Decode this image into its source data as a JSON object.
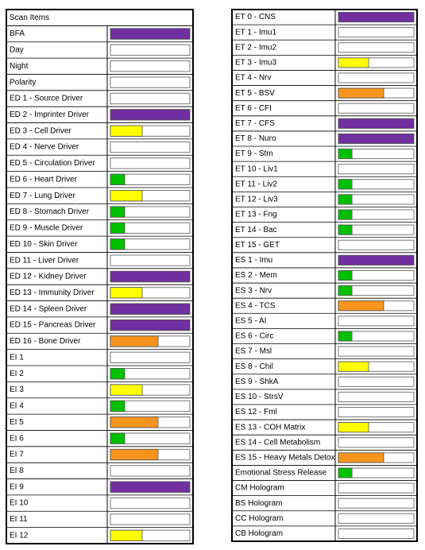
{
  "left": {
    "title": "Scan Items",
    "rows": [
      {
        "label": "BFA",
        "value": 100,
        "color": "#7030a0"
      },
      {
        "label": "Day",
        "value": 0
      },
      {
        "label": "Night",
        "value": 0
      },
      {
        "label": "Polarity",
        "value": 0
      },
      {
        "label": "ED 1 - Source Driver",
        "value": 0
      },
      {
        "label": "ED 2 - Imprinter Driver",
        "value": 100,
        "color": "#7030a0"
      },
      {
        "label": "ED 3 - Cell Driver",
        "value": 40,
        "color": "#ffff00"
      },
      {
        "label": "ED 4 - Nerve Driver",
        "value": 0
      },
      {
        "label": "ED 5 - Circulation Driver",
        "value": 0
      },
      {
        "label": "ED 6 - Heart Driver",
        "value": 18,
        "color": "#00c000"
      },
      {
        "label": "ED 7 - Lung Driver",
        "value": 40,
        "color": "#ffff00"
      },
      {
        "label": "ED 8 - Stomach Driver",
        "value": 18,
        "color": "#00c000"
      },
      {
        "label": "ED 9 - Muscle Driver",
        "value": 18,
        "color": "#00c000"
      },
      {
        "label": "ED 10 - Skin Driver",
        "value": 18,
        "color": "#00c000"
      },
      {
        "label": "ED 11 - Liver Driver",
        "value": 0
      },
      {
        "label": "ED 12 - Kidney Driver",
        "value": 100,
        "color": "#7030a0"
      },
      {
        "label": "ED 13 - Immunity Driver",
        "value": 40,
        "color": "#ffff00"
      },
      {
        "label": "ED 14 - Spleen Driver",
        "value": 100,
        "color": "#7030a0"
      },
      {
        "label": "ED 15 - Pancreas Driver",
        "value": 100,
        "color": "#7030a0"
      },
      {
        "label": "ED 16 - Bone Driver",
        "value": 60,
        "color": "#f7941d"
      },
      {
        "label": "EI 1",
        "value": 0
      },
      {
        "label": "EI 2",
        "value": 18,
        "color": "#00c000"
      },
      {
        "label": "EI 3",
        "value": 40,
        "color": "#ffff00"
      },
      {
        "label": "EI 4",
        "value": 18,
        "color": "#00c000"
      },
      {
        "label": "EI 5",
        "value": 60,
        "color": "#f7941d"
      },
      {
        "label": "EI 6",
        "value": 18,
        "color": "#00c000"
      },
      {
        "label": "EI 7",
        "value": 60,
        "color": "#f7941d"
      },
      {
        "label": "EI 8",
        "value": 0
      },
      {
        "label": "EI 9",
        "value": 100,
        "color": "#7030a0"
      },
      {
        "label": "EI 10",
        "value": 0
      },
      {
        "label": "EI 11",
        "value": 0
      },
      {
        "label": "EI 12",
        "value": 40,
        "color": "#ffff00"
      }
    ]
  },
  "right": {
    "rows": [
      {
        "label": "ET 0 - CNS",
        "value": 100,
        "color": "#7030a0"
      },
      {
        "label": "ET 1 - Imu1",
        "value": 0
      },
      {
        "label": "ET 2 - Imu2",
        "value": 0
      },
      {
        "label": "ET 3 - Imu3",
        "value": 40,
        "color": "#ffff00"
      },
      {
        "label": "ET 4 - Nrv",
        "value": 0
      },
      {
        "label": "ET 5 - BSV",
        "value": 60,
        "color": "#f7941d"
      },
      {
        "label": "ET 6 - CFI",
        "value": 0
      },
      {
        "label": "ET 7 - CFS",
        "value": 100,
        "color": "#7030a0"
      },
      {
        "label": "ET 8 - Nuro",
        "value": 100,
        "color": "#7030a0"
      },
      {
        "label": "ET 9 - Stm",
        "value": 18,
        "color": "#00c000"
      },
      {
        "label": "ET 10 - Liv1",
        "value": 0
      },
      {
        "label": "ET 11 - Liv2",
        "value": 18,
        "color": "#00c000"
      },
      {
        "label": "ET 12 - Liv3",
        "value": 18,
        "color": "#00c000"
      },
      {
        "label": "ET 13 - Fng",
        "value": 18,
        "color": "#00c000"
      },
      {
        "label": "ET 14 - Bac",
        "value": 18,
        "color": "#00c000"
      },
      {
        "label": "ET 15 - GET",
        "value": 0
      },
      {
        "label": "ES 1 - Imu",
        "value": 100,
        "color": "#7030a0"
      },
      {
        "label": "ES 2 - Mem",
        "value": 18,
        "color": "#00c000"
      },
      {
        "label": "ES 3 - Nrv",
        "value": 18,
        "color": "#00c000"
      },
      {
        "label": "ES 4 - TCS",
        "value": 60,
        "color": "#f7941d"
      },
      {
        "label": "ES 5 - AI",
        "value": 0
      },
      {
        "label": "ES 6 - Circ",
        "value": 18,
        "color": "#00c000"
      },
      {
        "label": "ES 7 - Msl",
        "value": 0
      },
      {
        "label": "ES 8 - Chil",
        "value": 40,
        "color": "#ffff00"
      },
      {
        "label": "ES 9 - ShkA",
        "value": 0
      },
      {
        "label": "ES 10 - StrsV",
        "value": 0
      },
      {
        "label": "ES 12 - Fml",
        "value": 0
      },
      {
        "label": "ES 13 - COH Matrix",
        "value": 40,
        "color": "#ffff00"
      },
      {
        "label": "ES 14 - Cell Metabolism",
        "value": 0
      },
      {
        "label": "ES 15 - Heavy Metals Detox",
        "value": 60,
        "color": "#f7941d"
      },
      {
        "label": "Emotional Stress Release",
        "value": 18,
        "color": "#00c000"
      },
      {
        "label": "CM Hologram",
        "value": 0
      },
      {
        "label": "BS Hologram",
        "value": 0
      },
      {
        "label": "CC Hologram",
        "value": 0
      },
      {
        "label": "CB Hologram",
        "value": 0
      }
    ]
  }
}
